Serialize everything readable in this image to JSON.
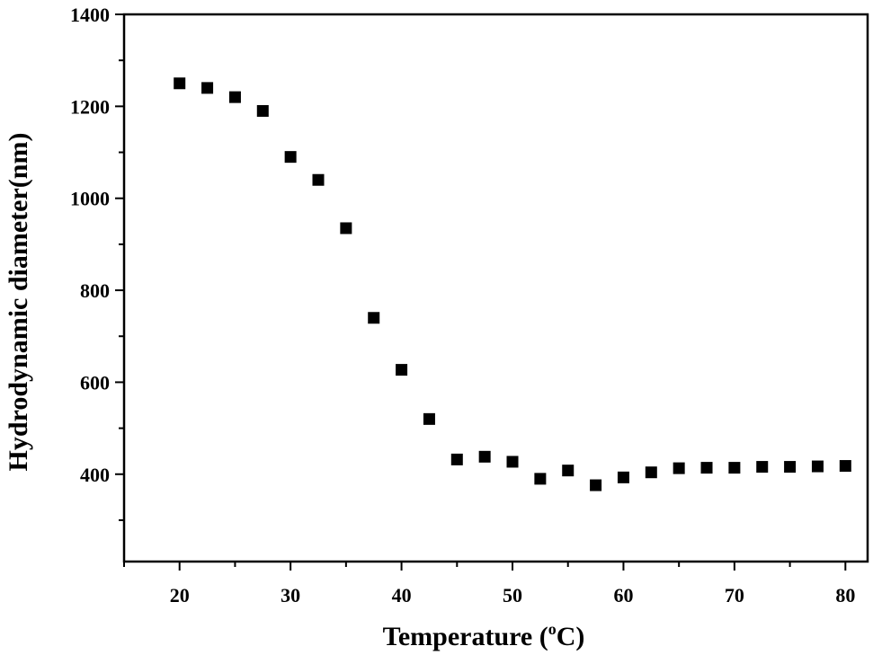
{
  "chart_data": {
    "type": "scatter",
    "title": "",
    "xlabel": {
      "prefix": "Temperature (",
      "superscript": "o",
      "suffix": "C)"
    },
    "ylabel": "Hydrodynamic diameter(nm)",
    "xlim": [
      15,
      82
    ],
    "ylim": [
      210,
      1400
    ],
    "xticks": [
      20,
      30,
      40,
      50,
      60,
      70,
      80
    ],
    "xtick_labels": [
      "20",
      "30",
      "40",
      "50",
      "60",
      "70",
      "80"
    ],
    "yticks_labeled": [
      400,
      600,
      800,
      1000,
      1200,
      1400
    ],
    "ytick_labels": [
      "400",
      "600",
      "800",
      "1000",
      "1200",
      "1400"
    ],
    "grid": false,
    "marker": "filled-square",
    "marker_color": "#000000",
    "x": [
      20,
      22.5,
      25,
      27.5,
      30,
      32.5,
      35,
      37.5,
      40,
      42.5,
      45,
      47.5,
      50,
      52.5,
      55,
      57.5,
      60,
      62.5,
      65,
      67.5,
      70,
      72.5,
      75,
      77.5,
      80
    ],
    "y": [
      1250,
      1240,
      1220,
      1190,
      1090,
      1040,
      935,
      740,
      627,
      520,
      432,
      438,
      427,
      390,
      408,
      376,
      393,
      404,
      413,
      414,
      414,
      416,
      416,
      417,
      418
    ]
  }
}
